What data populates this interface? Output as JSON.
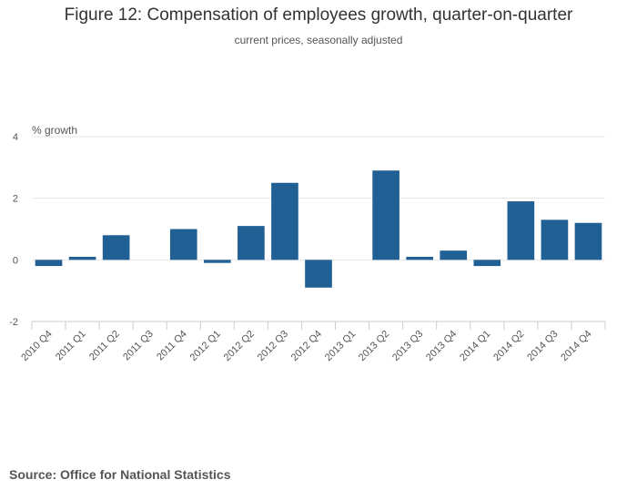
{
  "chart_data": {
    "type": "bar",
    "title": "Figure 12: Compensation of employees growth, quarter-on-quarter",
    "subtitle": "current prices, seasonally adjusted",
    "ylabel": "% growth",
    "xlabel": "",
    "ylim": [
      -2,
      4
    ],
    "yticks": [
      4,
      2,
      0,
      -2
    ],
    "grid": true,
    "bar_color": "#206095",
    "categories": [
      "2010 Q4",
      "2011 Q1",
      "2011 Q2",
      "2011 Q3",
      "2011 Q4",
      "2012 Q1",
      "2012 Q2",
      "2012 Q3",
      "2012 Q4",
      "2013 Q1",
      "2013 Q2",
      "2013 Q3",
      "2013 Q4",
      "2014 Q1",
      "2014 Q2",
      "2014 Q3",
      "2014 Q4"
    ],
    "values": [
      -0.2,
      0.1,
      0.8,
      0.0,
      1.0,
      -0.1,
      1.1,
      2.5,
      -0.9,
      0.0,
      2.9,
      0.1,
      0.3,
      -0.2,
      1.9,
      1.3,
      1.2
    ]
  },
  "source": "Source: Office for National Statistics"
}
